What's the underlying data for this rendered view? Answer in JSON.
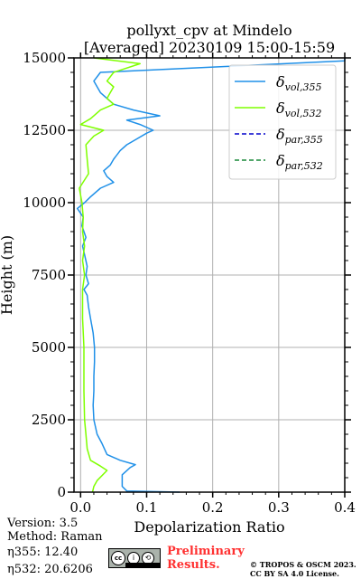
{
  "chart_data": {
    "type": "line",
    "title": [
      "pollyxt_cpv at Mindelo",
      "[Averaged] 20230109 15:00-15:59"
    ],
    "xlabel": "Depolarization Ratio",
    "ylabel": "Height (m)",
    "xlim": [
      -0.01,
      0.4
    ],
    "ylim": [
      0,
      15000
    ],
    "xticks": [
      "0.0",
      "0.1",
      "0.2",
      "0.3",
      "0.4"
    ],
    "yticks": [
      "0",
      "2500",
      "5000",
      "7500",
      "10000",
      "12500",
      "15000"
    ],
    "grid": true,
    "legend_position": "top-right",
    "series": [
      {
        "name": "δ_vol,355",
        "color": "#1f90e8",
        "style": "solid",
        "points": [
          [
            0.15,
            0
          ],
          [
            0.07,
            40
          ],
          [
            0.063,
            200
          ],
          [
            0.063,
            600
          ],
          [
            0.075,
            850
          ],
          [
            0.083,
            950
          ],
          [
            0.06,
            1100
          ],
          [
            0.04,
            1300
          ],
          [
            0.032,
            1700
          ],
          [
            0.025,
            2000
          ],
          [
            0.02,
            2500
          ],
          [
            0.019,
            3000
          ],
          [
            0.02,
            3500
          ],
          [
            0.02,
            4000
          ],
          [
            0.021,
            4500
          ],
          [
            0.021,
            5000
          ],
          [
            0.019,
            5500
          ],
          [
            0.015,
            6000
          ],
          [
            0.012,
            6400
          ],
          [
            0.01,
            6800
          ],
          [
            0.005,
            7000
          ],
          [
            0.012,
            7200
          ],
          [
            0.008,
            7500
          ],
          [
            0.01,
            7800
          ],
          [
            0.006,
            8200
          ],
          [
            0.003,
            8500
          ],
          [
            0.008,
            8800
          ],
          [
            0.002,
            9200
          ],
          [
            0.004,
            9500
          ],
          [
            -0.005,
            9800
          ],
          [
            0.006,
            10000
          ],
          [
            0.015,
            10200
          ],
          [
            0.03,
            10500
          ],
          [
            0.05,
            10700
          ],
          [
            0.04,
            10900
          ],
          [
            0.035,
            11100
          ],
          [
            0.045,
            11300
          ],
          [
            0.05,
            11500
          ],
          [
            0.06,
            11800
          ],
          [
            0.07,
            12000
          ],
          [
            0.085,
            12200
          ],
          [
            0.1,
            12400
          ],
          [
            0.11,
            12500
          ],
          [
            0.09,
            12700
          ],
          [
            0.07,
            12850
          ],
          [
            0.12,
            13000
          ],
          [
            0.08,
            13200
          ],
          [
            0.05,
            13400
          ],
          [
            0.03,
            13800
          ],
          [
            0.02,
            14200
          ],
          [
            0.03,
            14500
          ],
          [
            0.4,
            14900
          ],
          [
            0.4,
            15000
          ]
        ]
      },
      {
        "name": "δ_vol,532",
        "color": "#7fff00",
        "style": "solid",
        "points": [
          [
            0.018,
            0
          ],
          [
            0.02,
            200
          ],
          [
            0.025,
            400
          ],
          [
            0.04,
            750
          ],
          [
            0.03,
            900
          ],
          [
            0.015,
            1100
          ],
          [
            0.01,
            1500
          ],
          [
            0.008,
            2000
          ],
          [
            0.006,
            2500
          ],
          [
            0.005,
            3500
          ],
          [
            0.005,
            5000
          ],
          [
            0.003,
            6000
          ],
          [
            0.003,
            7000
          ],
          [
            0.006,
            7500
          ],
          [
            0.003,
            8000
          ],
          [
            0.006,
            8500
          ],
          [
            0.003,
            9000
          ],
          [
            0.004,
            9500
          ],
          [
            0.002,
            10000
          ],
          [
            -0.002,
            10500
          ],
          [
            0.012,
            11000
          ],
          [
            0.01,
            11500
          ],
          [
            0.008,
            12000
          ],
          [
            0.02,
            12300
          ],
          [
            0.035,
            12500
          ],
          [
            0.0,
            12700
          ],
          [
            0.015,
            12900
          ],
          [
            0.03,
            13200
          ],
          [
            0.05,
            13400
          ],
          [
            0.04,
            13600
          ],
          [
            0.045,
            13800
          ],
          [
            0.05,
            14000
          ],
          [
            0.04,
            14200
          ],
          [
            0.05,
            14500
          ],
          [
            0.09,
            14800
          ],
          [
            0.02,
            15000
          ]
        ]
      },
      {
        "name": "δ_par,355",
        "color": "#0000cc",
        "style": "dashed",
        "points": []
      },
      {
        "name": "δ_par,532",
        "color": "#1a8a3a",
        "style": "dashed",
        "points": []
      }
    ]
  },
  "info": {
    "version": "Version: 3.5",
    "method": "Method: Raman",
    "eta355": "η355:  12.40",
    "eta532": "η532: 20.6206"
  },
  "license": {
    "badge": [
      "cc",
      "i",
      "⟲"
    ],
    "preliminary": [
      "Preliminary",
      "Results."
    ],
    "copyright": [
      "© TROPOS & OSCM 2023.",
      "CC BY SA 4.0 License."
    ]
  }
}
